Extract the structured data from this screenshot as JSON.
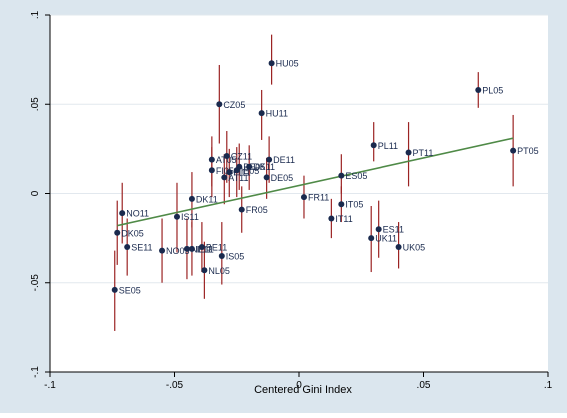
{
  "chart_data": {
    "type": "scatter",
    "xlabel": "Centered Gini Index",
    "ylabel": "",
    "xlim": [
      -0.1,
      0.1
    ],
    "ylim": [
      -0.1,
      0.1
    ],
    "x_ticks": [
      -0.1,
      -0.05,
      0,
      0.05,
      0.1
    ],
    "x_tick_labels": [
      "-.1",
      "-.05",
      "0",
      ".05",
      ".1"
    ],
    "y_ticks": [
      -0.1,
      -0.05,
      0,
      0.05,
      0.1
    ],
    "y_tick_labels": [
      "-.1",
      "-.05",
      "0",
      ".05",
      ".1"
    ],
    "grid": true,
    "colors": {
      "background": "#dbe6ee",
      "plot_background": "#ffffff",
      "grid": "#e2e8ee",
      "point": "#1a2a4e",
      "error_bar": "#9b2323",
      "fit_line": "#4f8a47",
      "label": "#1a2a4e"
    },
    "points": [
      {
        "label": "HU05",
        "x": -0.011,
        "y": 0.073,
        "lo": 0.061,
        "hi": 0.089
      },
      {
        "label": "PL05",
        "x": 0.072,
        "y": 0.058,
        "lo": 0.048,
        "hi": 0.068
      },
      {
        "label": "CZ05",
        "x": -0.032,
        "y": 0.05,
        "lo": 0.028,
        "hi": 0.072
      },
      {
        "label": "HU11",
        "x": -0.015,
        "y": 0.045,
        "lo": 0.03,
        "hi": 0.058
      },
      {
        "label": "PL11",
        "x": 0.03,
        "y": 0.027,
        "lo": 0.018,
        "hi": 0.04
      },
      {
        "label": "PT05",
        "x": 0.086,
        "y": 0.024,
        "lo": 0.004,
        "hi": 0.044
      },
      {
        "label": "PT11",
        "x": 0.044,
        "y": 0.023,
        "lo": 0.004,
        "hi": 0.04
      },
      {
        "label": "CZ11",
        "x": -0.029,
        "y": 0.021,
        "lo": 0.006,
        "hi": 0.035
      },
      {
        "label": "AT05",
        "x": -0.035,
        "y": 0.019,
        "lo": 0.004,
        "hi": 0.032
      },
      {
        "label": "DE11",
        "x": -0.012,
        "y": 0.019,
        "lo": 0.006,
        "hi": 0.032
      },
      {
        "label": "BE05",
        "x": -0.024,
        "y": 0.015,
        "lo": 0.002,
        "hi": 0.028
      },
      {
        "label": "DK11",
        "x": -0.02,
        "y": 0.015,
        "lo": 0.002,
        "hi": 0.027
      },
      {
        "label": "FI05",
        "x": -0.035,
        "y": 0.013,
        "lo": -0.002,
        "hi": 0.026
      },
      {
        "label": "IE05",
        "x": -0.025,
        "y": 0.013,
        "lo": -0.002,
        "hi": 0.026
      },
      {
        "label": "FI11",
        "x": -0.028,
        "y": 0.012,
        "lo": -0.002,
        "hi": 0.025
      },
      {
        "label": "AT11",
        "x": -0.03,
        "y": 0.009,
        "lo": -0.006,
        "hi": 0.022
      },
      {
        "label": "ES05",
        "x": 0.017,
        "y": 0.01,
        "lo": 0.0,
        "hi": 0.022
      },
      {
        "label": "DE05",
        "x": -0.013,
        "y": 0.009,
        "lo": -0.003,
        "hi": 0.02
      },
      {
        "label": "FR11",
        "x": 0.002,
        "y": -0.002,
        "lo": -0.014,
        "hi": 0.01
      },
      {
        "label": "DK11",
        "x": -0.043,
        "y": -0.003,
        "lo": -0.019,
        "hi": 0.012
      },
      {
        "label": "IT05",
        "x": 0.017,
        "y": -0.006,
        "lo": -0.016,
        "hi": 0.004
      },
      {
        "label": "NO11",
        "x": -0.071,
        "y": -0.011,
        "lo": -0.028,
        "hi": 0.006
      },
      {
        "label": "FR05",
        "x": -0.023,
        "y": -0.009,
        "lo": -0.022,
        "hi": 0.004
      },
      {
        "label": "IS11",
        "x": -0.049,
        "y": -0.013,
        "lo": -0.033,
        "hi": 0.006
      },
      {
        "label": "IT11",
        "x": 0.013,
        "y": -0.014,
        "lo": -0.025,
        "hi": -0.003
      },
      {
        "label": "ES11",
        "x": 0.032,
        "y": -0.02,
        "lo": -0.036,
        "hi": -0.004
      },
      {
        "label": "DK05",
        "x": -0.073,
        "y": -0.022,
        "lo": -0.04,
        "hi": -0.004
      },
      {
        "label": "UK11",
        "x": 0.029,
        "y": -0.025,
        "lo": -0.044,
        "hi": -0.007
      },
      {
        "label": "SE11",
        "x": -0.069,
        "y": -0.03,
        "lo": -0.046,
        "hi": -0.014
      },
      {
        "label": "UK05",
        "x": 0.04,
        "y": -0.03,
        "lo": -0.042,
        "hi": -0.016
      },
      {
        "label": "NO05",
        "x": -0.055,
        "y": -0.032,
        "lo": -0.05,
        "hi": -0.014
      },
      {
        "label": "BE11",
        "x": -0.039,
        "y": -0.03,
        "lo": -0.044,
        "hi": -0.016
      },
      {
        "label": "NL11",
        "x": -0.045,
        "y": -0.031,
        "lo": -0.048,
        "hi": -0.014
      },
      {
        "label": "IE11",
        "x": -0.043,
        "y": -0.031,
        "lo": -0.046,
        "hi": -0.016
      },
      {
        "label": "IS05",
        "x": -0.031,
        "y": -0.035,
        "lo": -0.051,
        "hi": -0.016
      },
      {
        "label": "NL05",
        "x": -0.038,
        "y": -0.043,
        "lo": -0.059,
        "hi": -0.027
      },
      {
        "label": "SE05",
        "x": -0.074,
        "y": -0.054,
        "lo": -0.077,
        "hi": -0.032
      }
    ],
    "fit_line": {
      "x1": -0.073,
      "y1": -0.018,
      "x2": 0.086,
      "y2": 0.031
    }
  }
}
